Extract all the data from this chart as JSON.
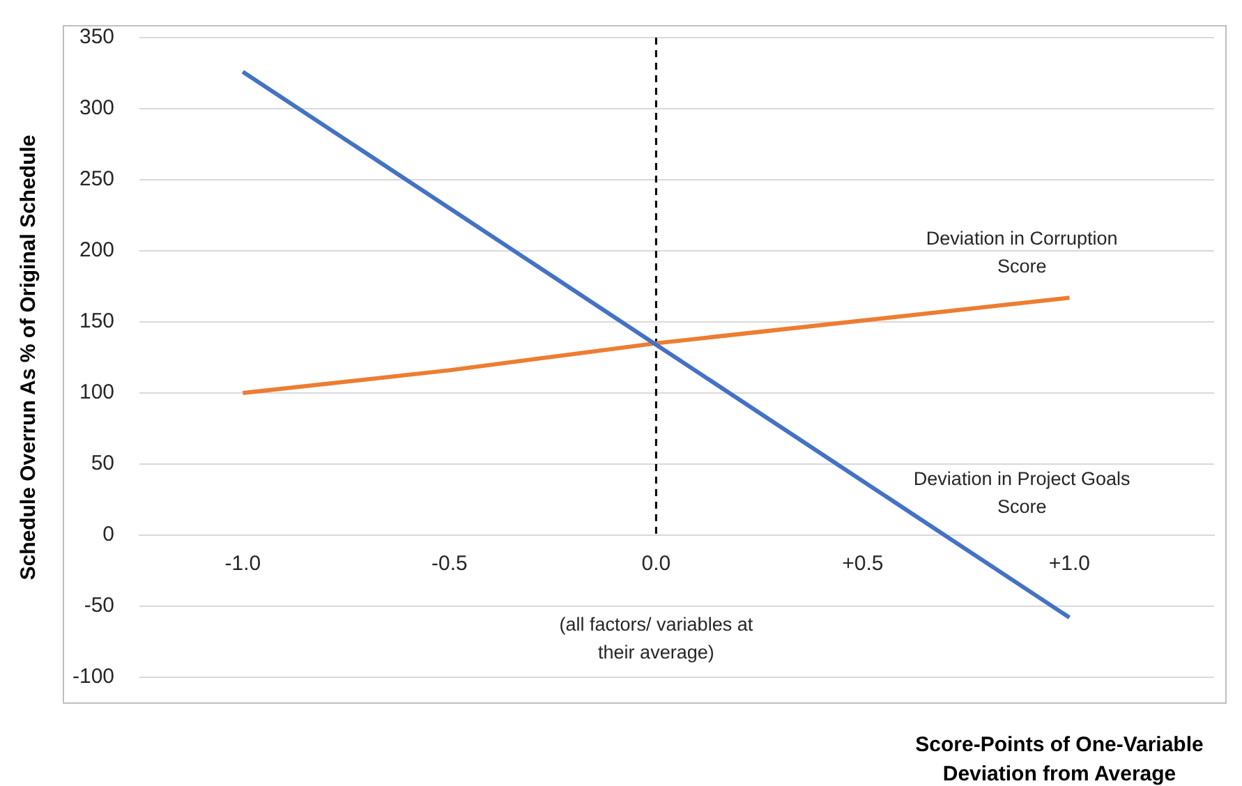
{
  "chart_data": {
    "type": "line",
    "xlabel": "Score-Points of One-Variable Deviation from Average",
    "ylabel": "Schedule Overrun As % of Original Schedule",
    "x": [
      -1,
      -0.5,
      0,
      0.5,
      1
    ],
    "series": [
      {
        "name": "Deviation in Project Goals Score",
        "color": "#4472c4",
        "values": [
          326,
          230,
          134,
          38,
          -58
        ]
      },
      {
        "name": "Deviation in Corruption Score",
        "color": "#ed7d31",
        "values": [
          100,
          116,
          135,
          151,
          167
        ]
      }
    ],
    "xlim": [
      -1.25,
      1.35
    ],
    "xticks": [
      {
        "value": -1,
        "label": "-1.0"
      },
      {
        "value": -0.5,
        "label": "-0.5"
      },
      {
        "value": 0,
        "label": "0.0"
      },
      {
        "value": 0.5,
        "label": "+0.5"
      },
      {
        "value": 1,
        "label": "+1.0"
      }
    ],
    "ylim": [
      -100,
      350
    ],
    "yticks": [
      -100,
      -50,
      0,
      50,
      100,
      150,
      200,
      250,
      300,
      350
    ],
    "grid": "y",
    "legend": false,
    "marker": "none",
    "line_style": "solid",
    "ref_lines": [
      {
        "axis": "x",
        "value": 0,
        "label": null,
        "color": "#000000",
        "line_style": "dashed"
      }
    ],
    "annotations": [
      "(all factors/ variables at their average)"
    ]
  }
}
